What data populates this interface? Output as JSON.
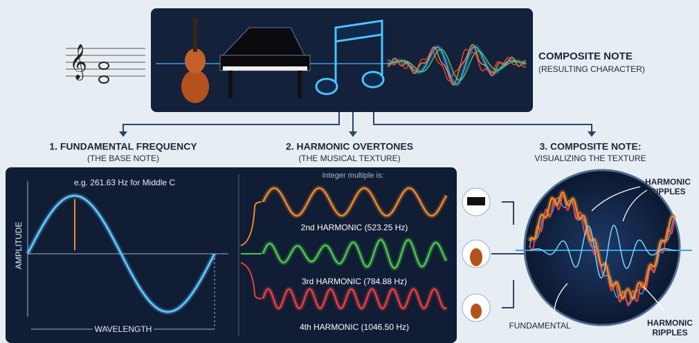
{
  "header": {
    "title": "COMPOSITE NOTE",
    "subtitle": "(RESULTING CHARACTER)"
  },
  "sections": [
    {
      "title": "1. FUNDAMENTAL FREQUENCY",
      "subtitle": "(THE BASE NOTE)"
    },
    {
      "title": "2. HARMONIC OVERTONES",
      "subtitle": "(THE MUSICAL TEXTURE)"
    },
    {
      "title": "3. COMPOSITE NOTE:",
      "subtitle": "VISUALIZING THE TEXTURE"
    }
  ],
  "fundamental": {
    "example": "e.g. 261.63 Hz for Middle C",
    "y_label": "AMPLITUDE",
    "x_label": "WAVELENGTH"
  },
  "harmonics": {
    "heading": "Integer multiple is:",
    "items": [
      "2nd HARMONIC (523.25 Hz)",
      "3rd HARMONIC (784.88 Hz)",
      "4th HARMONIC (1046.50 Hz)"
    ]
  },
  "composite": {
    "labels": [
      "HARMONIC RIPPLES",
      "FUNDAMENTAL",
      "HARMONIC RIPPLES"
    ]
  }
}
